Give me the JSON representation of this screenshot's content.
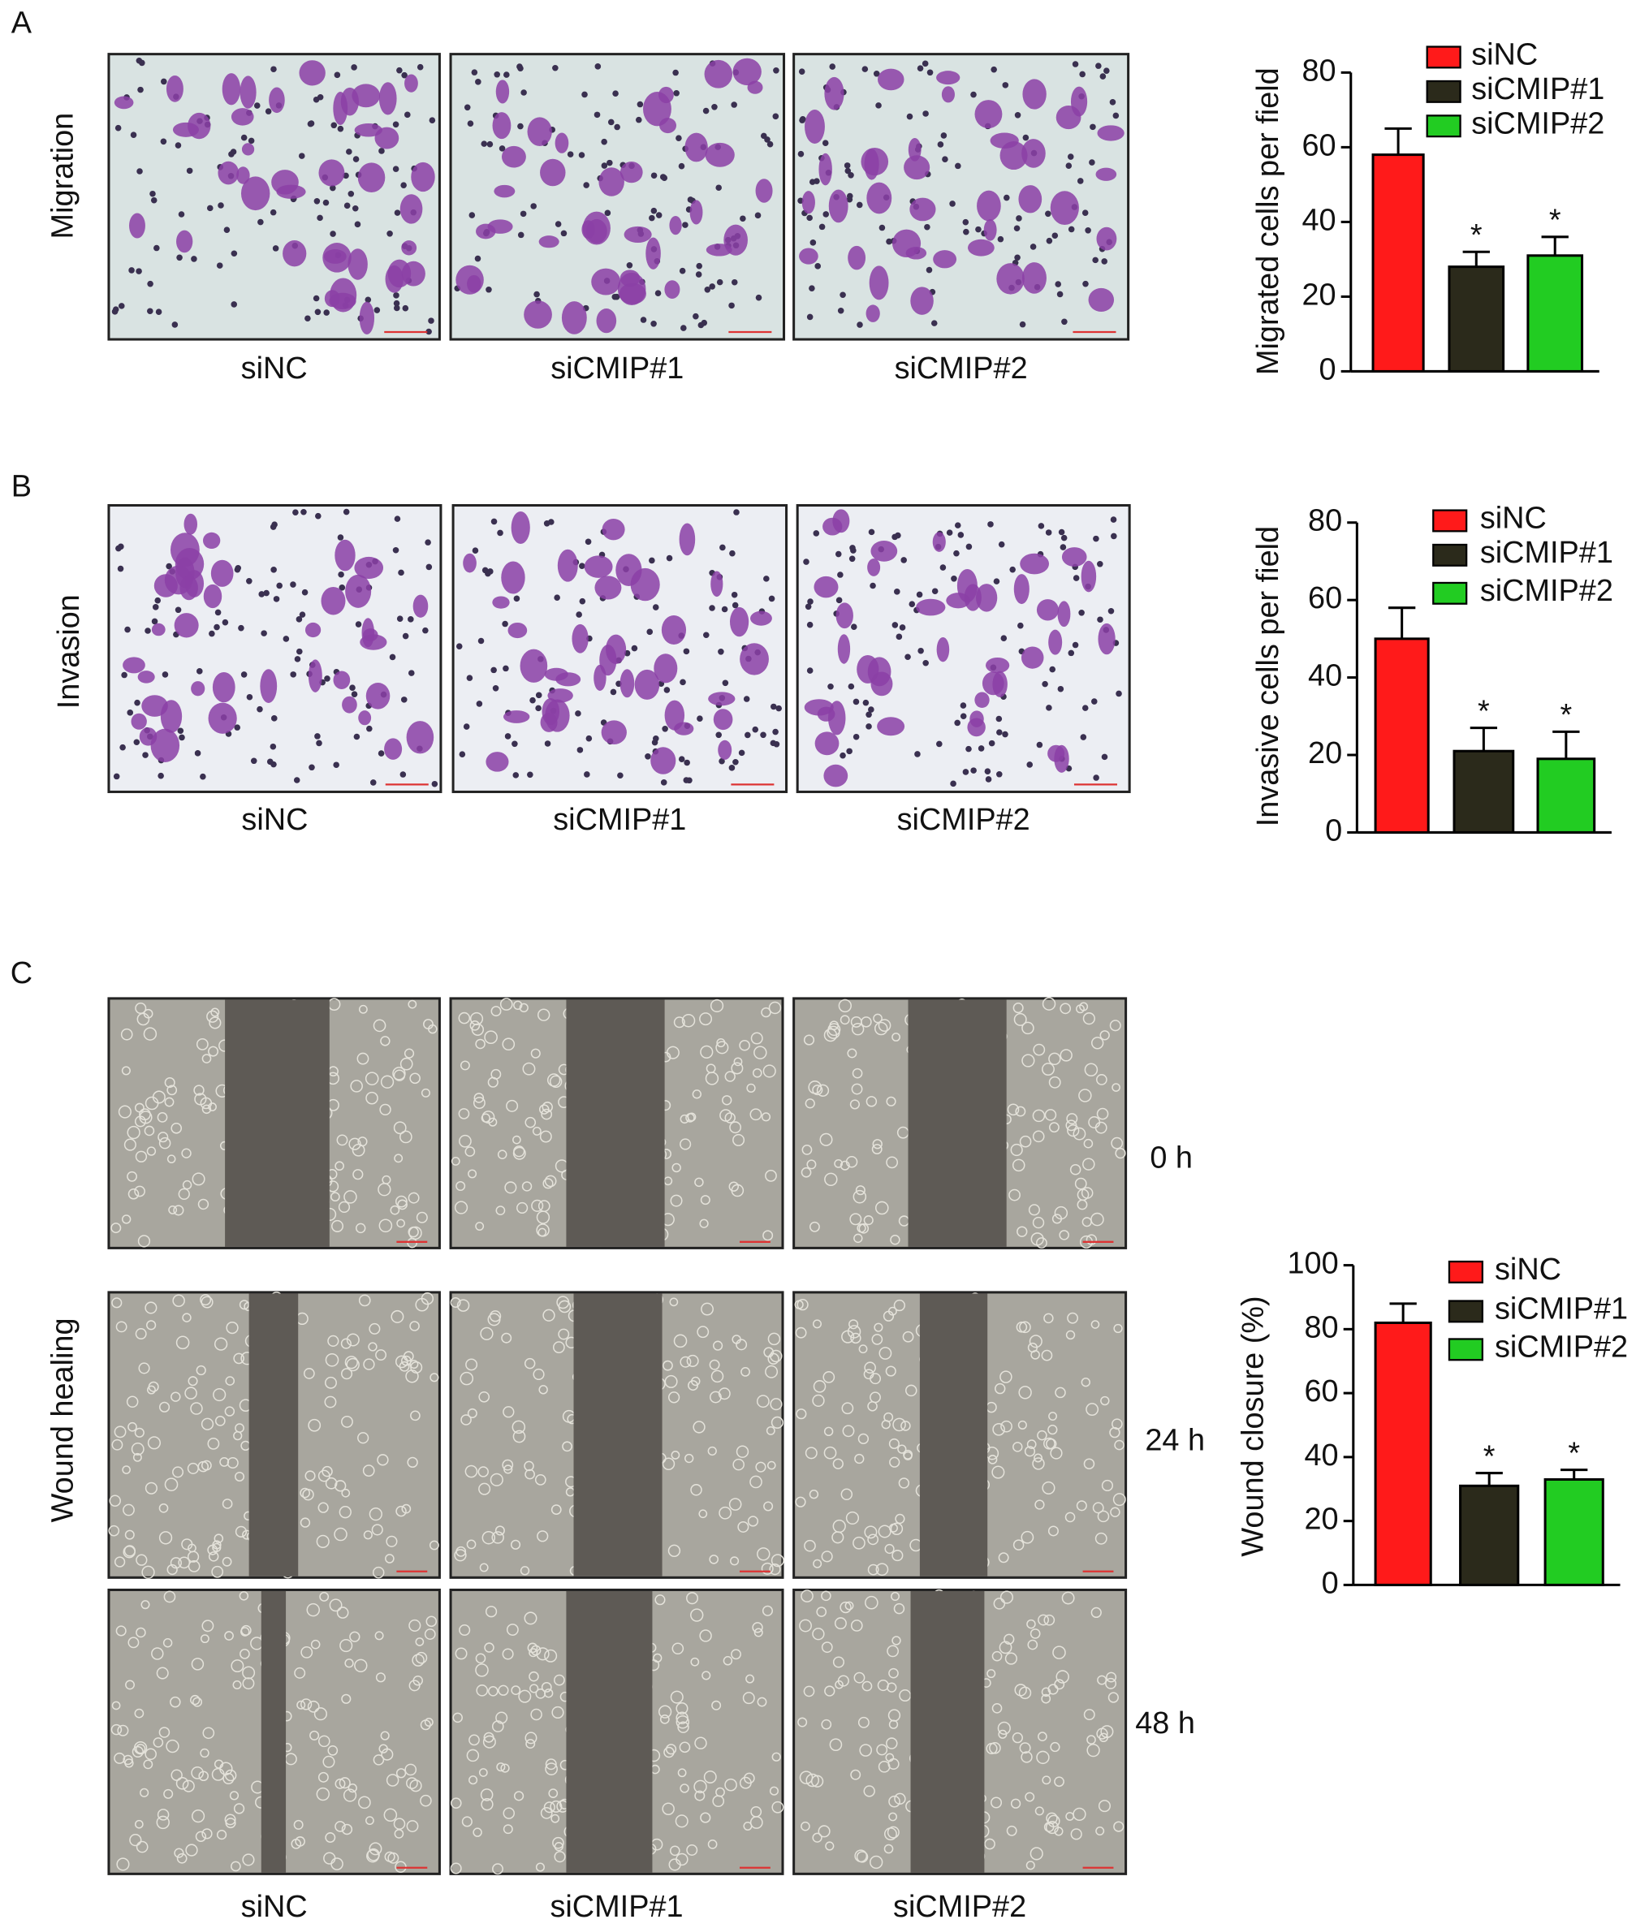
{
  "panels": [
    {
      "label": "A",
      "row_label": "Migration",
      "columns": [
        "siNC",
        "siCMIP#1",
        "siCMIP#2"
      ]
    },
    {
      "label": "B",
      "row_label": "Invasion",
      "columns": [
        "siNC",
        "siCMIP#1",
        "siCMIP#2"
      ]
    },
    {
      "label": "C",
      "row_label": "Wound healing",
      "columns": [
        "siNC",
        "siCMIP#1",
        "siCMIP#2"
      ],
      "time_points": [
        "0 h",
        "24 h",
        "48 h"
      ]
    }
  ],
  "chart_data": [
    {
      "type": "bar",
      "ylabel": "Migrated cells per field",
      "ylim": [
        0,
        80
      ],
      "yticks": [
        0,
        20,
        40,
        60,
        80
      ],
      "series": [
        {
          "name": "siNC",
          "color": "#ff1a1a",
          "values": [
            58
          ],
          "errors": [
            7
          ]
        },
        {
          "name": "siCMIP#1",
          "color": "#2b2a1b",
          "values": [
            28
          ],
          "errors": [
            4
          ],
          "annotation": "*"
        },
        {
          "name": "siCMIP#2",
          "color": "#22cc22",
          "values": [
            31
          ],
          "errors": [
            5
          ],
          "annotation": "*"
        }
      ]
    },
    {
      "type": "bar",
      "ylabel": "Invasive cells per field",
      "ylim": [
        0,
        80
      ],
      "yticks": [
        0,
        20,
        40,
        60,
        80
      ],
      "series": [
        {
          "name": "siNC",
          "color": "#ff1a1a",
          "values": [
            50
          ],
          "errors": [
            8
          ]
        },
        {
          "name": "siCMIP#1",
          "color": "#2b2a1b",
          "values": [
            21
          ],
          "errors": [
            6
          ],
          "annotation": "*"
        },
        {
          "name": "siCMIP#2",
          "color": "#22cc22",
          "values": [
            19
          ],
          "errors": [
            7
          ],
          "annotation": "*"
        }
      ]
    },
    {
      "type": "bar",
      "ylabel": "Wound closure (%)",
      "ylim": [
        0,
        100
      ],
      "yticks": [
        0,
        20,
        40,
        60,
        80,
        100
      ],
      "series": [
        {
          "name": "siNC",
          "color": "#ff1a1a",
          "values": [
            82
          ],
          "errors": [
            6
          ]
        },
        {
          "name": "siCMIP#1",
          "color": "#2b2a1b",
          "values": [
            31
          ],
          "errors": [
            4
          ],
          "annotation": "*"
        },
        {
          "name": "siCMIP#2",
          "color": "#22cc22",
          "values": [
            33
          ],
          "errors": [
            3
          ],
          "annotation": "*"
        }
      ]
    }
  ]
}
